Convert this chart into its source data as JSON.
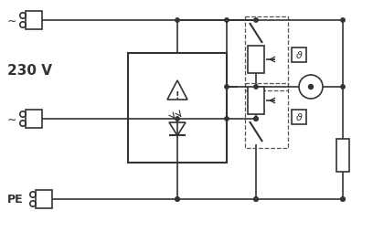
{
  "bg": "#ffffff",
  "lc": "#333333",
  "dc": "#555555",
  "lw": 1.2,
  "dlw": 1.0,
  "fig_w": 4.08,
  "fig_h": 2.54,
  "dpi": 100,
  "label_230v": "230 V",
  "label_pe": "PE",
  "tilde": "~"
}
